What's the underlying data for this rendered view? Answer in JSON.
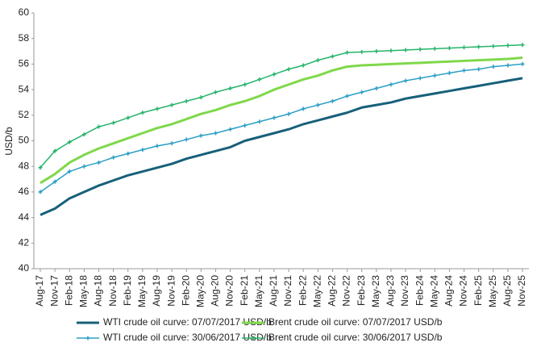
{
  "chart_data": {
    "type": "line",
    "y_label": "USD/b",
    "categories": [
      "Aug-17",
      "Nov-17",
      "Feb-18",
      "May-18",
      "Aug-18",
      "Nov-18",
      "Feb-19",
      "May-19",
      "Aug-19",
      "Nov-19",
      "Feb-20",
      "May-20",
      "Aug-20",
      "Nov-20",
      "Feb-21",
      "May-21",
      "Aug-21",
      "Nov-21",
      "Feb-22",
      "May-22",
      "Aug-22",
      "Nov-22",
      "Feb-23",
      "May-23",
      "Aug-23",
      "Nov-23",
      "Feb-24",
      "May-24",
      "Aug-24",
      "Nov-24",
      "Feb-25",
      "May-25",
      "Aug-25",
      "Nov-25"
    ],
    "series": [
      {
        "name": "WTI crude oil curve: 07/07/2017 USD/b",
        "color": "#17607a",
        "line_width": 3,
        "markers": false,
        "values": [
          44.2,
          44.7,
          45.5,
          46.0,
          46.5,
          46.9,
          47.3,
          47.6,
          47.9,
          48.2,
          48.6,
          48.9,
          49.2,
          49.5,
          50.0,
          50.3,
          50.6,
          50.9,
          51.3,
          51.6,
          51.9,
          52.2,
          52.6,
          52.8,
          53.0,
          53.3,
          53.5,
          53.7,
          53.9,
          54.1,
          54.3,
          54.5,
          54.7,
          54.9
        ]
      },
      {
        "name": "Brent crude oil curve: 07/07/2017 USD/b",
        "color": "#7fd84a",
        "line_width": 3,
        "markers": false,
        "values": [
          46.7,
          47.4,
          48.3,
          48.9,
          49.4,
          49.8,
          50.2,
          50.6,
          51.0,
          51.3,
          51.7,
          52.1,
          52.4,
          52.8,
          53.1,
          53.5,
          54.0,
          54.4,
          54.8,
          55.1,
          55.5,
          55.8,
          55.9,
          55.95,
          56.0,
          56.05,
          56.1,
          56.15,
          56.2,
          56.25,
          56.3,
          56.35,
          56.4,
          56.5
        ]
      },
      {
        "name": "WTI crude oil curve: 30/06/2017 USD/b",
        "color": "#2c9fc6",
        "line_width": 1.5,
        "markers": true,
        "values": [
          46.0,
          46.8,
          47.6,
          48.0,
          48.3,
          48.7,
          49.0,
          49.3,
          49.6,
          49.8,
          50.1,
          50.4,
          50.6,
          50.9,
          51.2,
          51.5,
          51.8,
          52.1,
          52.5,
          52.8,
          53.1,
          53.5,
          53.8,
          54.1,
          54.4,
          54.7,
          54.9,
          55.1,
          55.3,
          55.5,
          55.6,
          55.8,
          55.9,
          56.0
        ]
      },
      {
        "name": "Brent crude oil curve: 30/06/2017 USD/b",
        "color": "#27b46a",
        "line_width": 1.5,
        "markers": true,
        "values": [
          47.9,
          49.2,
          49.9,
          50.5,
          51.1,
          51.4,
          51.8,
          52.2,
          52.5,
          52.8,
          53.1,
          53.4,
          53.8,
          54.1,
          54.4,
          54.8,
          55.2,
          55.6,
          55.9,
          56.3,
          56.6,
          56.9,
          56.95,
          57.0,
          57.05,
          57.1,
          57.15,
          57.2,
          57.25,
          57.3,
          57.35,
          57.4,
          57.45,
          57.5
        ]
      }
    ],
    "ylim": [
      40,
      60
    ],
    "yticks": [
      40,
      42,
      44,
      46,
      48,
      50,
      52,
      54,
      56,
      58,
      60
    ],
    "grid": false
  }
}
